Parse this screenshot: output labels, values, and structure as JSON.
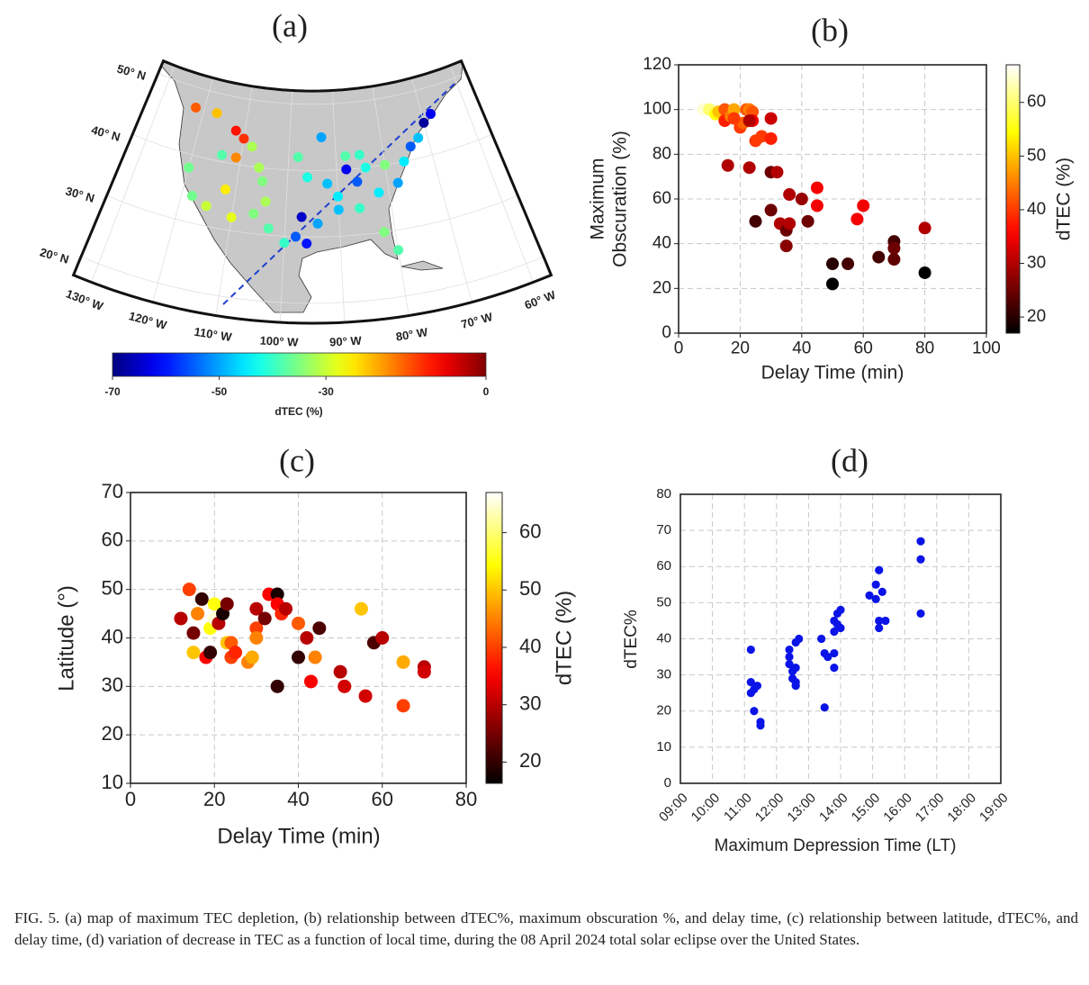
{
  "chart_data": [
    {
      "type": "map",
      "title": "(a)",
      "lon": [
        -122,
        -117,
        -112,
        -110,
        -108,
        -114,
        -120,
        -111,
        -106,
        -112,
        -118,
        -115,
        -110,
        -106,
        -103,
        -105,
        -104,
        -100,
        -93,
        -98,
        -96,
        -92,
        -90,
        -98,
        -96,
        -94,
        -97,
        -88,
        -90,
        -86,
        -84,
        -86,
        -88,
        -85,
        -82,
        -80,
        -78,
        -76,
        -82,
        -74,
        -72,
        -70,
        -68,
        -80
      ],
      "lat": [
        47,
        47,
        45,
        44,
        43,
        41,
        38,
        41,
        40,
        36,
        34,
        33,
        32,
        33,
        31,
        38,
        35,
        29,
        45,
        42,
        39,
        38,
        36,
        30,
        29,
        32,
        33,
        42,
        34,
        34,
        40,
        38,
        40,
        42,
        36,
        40,
        37,
        40,
        30,
        42,
        43,
        45,
        46,
        27
      ],
      "values": [
        -15,
        -22,
        -10,
        -12,
        -32,
        -38,
        -36,
        -18,
        -32,
        -25,
        -36,
        -30,
        -28,
        -35,
        -38,
        -35,
        -32,
        -40,
        -50,
        -38,
        -42,
        -48,
        -45,
        -55,
        -60,
        -50,
        -65,
        -38,
        -48,
        -40,
        -42,
        -55,
        -62,
        -40,
        -45,
        -35,
        -50,
        -45,
        -35,
        -55,
        -48,
        -68,
        -62,
        -38
      ],
      "lonlim": [
        -133,
        -57
      ],
      "latlim": [
        17,
        52
      ],
      "lat_labels": [
        {
          "value": 50,
          "label": "50° N"
        },
        {
          "value": 40,
          "label": "40° N"
        },
        {
          "value": 30,
          "label": "30° N"
        },
        {
          "value": 20,
          "label": "20° N"
        }
      ],
      "lon_labels": [
        {
          "value": -130,
          "label": "130° W"
        },
        {
          "value": -120,
          "label": "120° W"
        },
        {
          "value": -110,
          "label": "110° W"
        },
        {
          "value": -100,
          "label": "100° W"
        },
        {
          "value": -90,
          "label": "90° W"
        },
        {
          "value": -80,
          "label": "80° W"
        },
        {
          "value": -70,
          "label": "70° W"
        },
        {
          "value": -60,
          "label": "60° W"
        }
      ],
      "colorbar": {
        "label": "dTEC (%)",
        "lim": [
          -70,
          0
        ],
        "ticks": [
          -70,
          -50,
          -30,
          0
        ],
        "cmap": "jet",
        "orientation": "horizontal"
      }
    },
    {
      "type": "scatter",
      "title": "(b)",
      "xlabel": "Delay Time (min)",
      "ylabel": [
        "Maximum",
        "Obscuration (%)"
      ],
      "x": [
        8,
        10,
        12,
        13,
        15,
        15,
        17,
        18,
        20,
        21,
        22,
        23,
        24,
        24,
        25,
        27,
        30,
        30,
        23,
        18,
        16,
        23,
        30,
        32,
        36,
        40,
        45,
        45,
        25,
        30,
        33,
        35,
        36,
        35,
        42,
        58,
        60,
        50,
        55,
        50,
        65,
        70,
        70,
        70,
        80,
        80
      ],
      "y": [
        100,
        100,
        98,
        99,
        100,
        95,
        97,
        100,
        92,
        94,
        100,
        100,
        99,
        95,
        86,
        88,
        87,
        96,
        95,
        96,
        75,
        74,
        72,
        72,
        62,
        60,
        65,
        57,
        50,
        55,
        49,
        46,
        49,
        39,
        50,
        51,
        57,
        31,
        31,
        22,
        34,
        41,
        33,
        38,
        47,
        27
      ],
      "c": [
        65,
        60,
        55,
        50,
        42,
        38,
        45,
        48,
        40,
        43,
        42,
        45,
        42,
        35,
        40,
        40,
        38,
        32,
        30,
        40,
        30,
        30,
        25,
        30,
        30,
        28,
        35,
        35,
        22,
        25,
        30,
        25,
        30,
        27,
        25,
        35,
        35,
        20,
        22,
        16,
        22,
        22,
        24,
        25,
        30,
        17
      ],
      "xlim": [
        0,
        100
      ],
      "ylim": [
        0,
        120
      ],
      "xticks": [
        0,
        20,
        40,
        60,
        80,
        100
      ],
      "yticks": [
        0,
        20,
        40,
        60,
        80,
        100,
        120
      ],
      "grid": true,
      "colorbar": {
        "label": "dTEC (%)",
        "lim": [
          17,
          67
        ],
        "ticks": [
          20,
          30,
          40,
          50,
          60
        ],
        "cmap": "hot",
        "orientation": "vertical"
      }
    },
    {
      "type": "scatter",
      "title": "(c)",
      "xlabel": "Delay Time (min)",
      "ylabel": [
        "Latitude (°)"
      ],
      "x": [
        12,
        14,
        15,
        15,
        16,
        17,
        18,
        19,
        19,
        20,
        20,
        21,
        22,
        23,
        23,
        24,
        24,
        25,
        28,
        29,
        30,
        30,
        30,
        32,
        33,
        35,
        35,
        35,
        36,
        37,
        40,
        40,
        42,
        43,
        44,
        45,
        50,
        51,
        55,
        56,
        58,
        60,
        65,
        65,
        70,
        70
      ],
      "y": [
        44,
        50,
        37,
        41,
        45,
        48,
        36,
        42,
        37,
        44,
        47,
        43,
        45,
        47,
        39,
        36,
        39,
        37,
        35,
        36,
        46,
        42,
        40,
        44,
        49,
        49,
        30,
        47,
        45,
        46,
        43,
        36,
        40,
        31,
        36,
        42,
        33,
        30,
        46,
        28,
        39,
        40,
        35,
        26,
        34,
        33
      ],
      "c": [
        30,
        40,
        50,
        25,
        45,
        20,
        35,
        55,
        20,
        65,
        55,
        30,
        18,
        25,
        50,
        40,
        42,
        38,
        45,
        48,
        30,
        40,
        45,
        25,
        35,
        18,
        20,
        35,
        38,
        30,
        42,
        20,
        30,
        35,
        45,
        22,
        30,
        32,
        50,
        32,
        22,
        30,
        48,
        40,
        30,
        32
      ],
      "xlim": [
        0,
        80
      ],
      "ylim": [
        10,
        70
      ],
      "xticks": [
        0,
        20,
        40,
        60,
        80
      ],
      "yticks": [
        10,
        20,
        30,
        40,
        50,
        60,
        70
      ],
      "grid": true,
      "colorbar": {
        "label": "dTEC (%)",
        "lim": [
          16.3,
          67
        ],
        "ticks": [
          20,
          30,
          40,
          50,
          60
        ],
        "cmap": "hot",
        "orientation": "vertical"
      }
    },
    {
      "type": "scatter",
      "title": "(d)",
      "xlabel": "Maximum Depression Time (LT)",
      "ylabel": [
        "dTEC%"
      ],
      "color": "#0a14e6",
      "x": [
        11.2,
        11.2,
        11.3,
        11.2,
        11.4,
        11.3,
        11.5,
        11.5,
        12.4,
        12.4,
        12.4,
        12.5,
        12.5,
        12.6,
        12.6,
        12.7,
        12.6,
        12.6,
        13.4,
        13.5,
        13.6,
        13.5,
        13.8,
        13.8,
        13.9,
        14,
        13.9,
        14,
        13.8,
        13.8,
        14.9,
        15.1,
        15.1,
        15.2,
        15.3,
        15.2,
        15.2,
        15.4,
        16.5,
        16.5,
        16.5
      ],
      "y": [
        37,
        28,
        26,
        25,
        27,
        20,
        17,
        16,
        37,
        35,
        33,
        31,
        29,
        28,
        27,
        40,
        39,
        32,
        40,
        36,
        35,
        21,
        42,
        45,
        47,
        48,
        44,
        43,
        36,
        32,
        52,
        51,
        55,
        59,
        53,
        45,
        43,
        45,
        67,
        62,
        47
      ],
      "xlim": [
        9,
        19
      ],
      "ylim": [
        0,
        80
      ],
      "xticks": [
        {
          "value": 9,
          "label": "09:00"
        },
        {
          "value": 10,
          "label": "10:00"
        },
        {
          "value": 11,
          "label": "11:00"
        },
        {
          "value": 12,
          "label": "12:00"
        },
        {
          "value": 13,
          "label": "13:00"
        },
        {
          "value": 14,
          "label": "14:00"
        },
        {
          "value": 15,
          "label": "15:00"
        },
        {
          "value": 16,
          "label": "16:00"
        },
        {
          "value": 17,
          "label": "17:00"
        },
        {
          "value": 18,
          "label": "18:00"
        },
        {
          "value": 19,
          "label": "19:00"
        }
      ],
      "yticks": [
        0,
        10,
        20,
        30,
        40,
        50,
        60,
        70,
        80
      ],
      "grid": true
    }
  ],
  "caption": "FIG. 5.  (a) map of maximum TEC depletion, (b) relationship between dTEC%, maximum obscuration %, and delay time, (c) relationship between latitude, dTEC%, and delay time, (d) variation of decrease in TEC as a function of local time, during the 08 April 2024 total solar eclipse over the United States."
}
